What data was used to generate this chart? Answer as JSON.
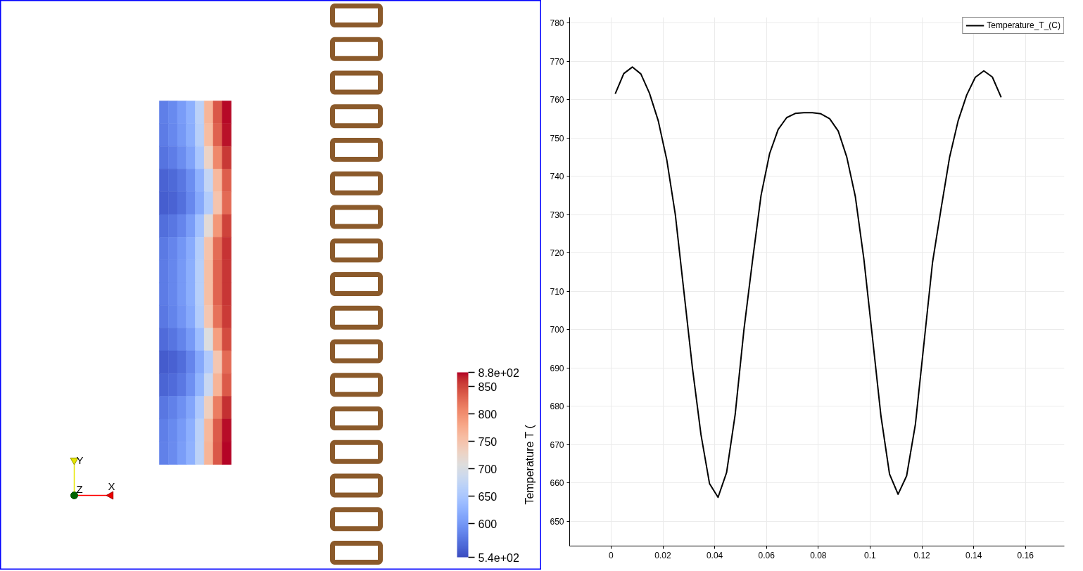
{
  "chart_data": [
    {
      "type": "heatmap",
      "categories": [
        null,
        null,
        null,
        null,
        null,
        null,
        null,
        null
      ],
      "y_categories": [
        null,
        null,
        null,
        null,
        null,
        null,
        null,
        null,
        null,
        null,
        null,
        null,
        null,
        null,
        null,
        null
      ],
      "cells": [
        [
          579,
          589,
          604,
          624,
          669,
          766,
          838,
          874
        ],
        [
          577,
          587,
          601,
          621,
          665,
          758,
          832,
          871
        ],
        [
          570,
          578,
          591,
          611,
          650,
          728,
          806,
          857
        ],
        [
          557,
          562,
          572,
          592,
          625,
          676,
          762,
          834
        ],
        [
          553,
          557,
          567,
          587,
          617,
          660,
          749,
          827
        ],
        [
          566,
          573,
          585,
          605,
          643,
          713,
          794,
          851
        ],
        [
          575,
          585,
          599,
          619,
          661,
          750,
          825,
          860
        ],
        [
          577,
          586,
          601,
          621,
          664,
          756,
          830,
          858
        ],
        [
          577,
          586,
          601,
          621,
          664,
          756,
          830,
          858
        ],
        [
          574,
          583,
          597,
          617,
          659,
          746,
          821,
          855
        ],
        [
          564,
          571,
          583,
          603,
          639,
          705,
          787,
          847
        ],
        [
          552,
          556,
          565,
          585,
          616,
          657,
          746,
          826
        ],
        [
          558,
          564,
          574,
          594,
          628,
          682,
          767,
          837
        ],
        [
          572,
          580,
          593,
          613,
          654,
          735,
          813,
          861
        ],
        [
          579,
          589,
          603,
          623,
          668,
          763,
          836,
          873
        ],
        [
          580,
          590,
          605,
          625,
          670,
          767,
          839,
          875
        ]
      ],
      "clim": [
        539,
        876
      ],
      "cticks": [
        {
          "value": 876,
          "label": "8.8e+02"
        },
        850,
        800,
        750,
        700,
        650,
        600,
        {
          "value": 539,
          "label": "5.4e+02"
        }
      ],
      "clabel": "Temperature T (",
      "annotations": [
        "Y",
        "Z",
        "X"
      ],
      "tick_labels": false
    },
    {
      "type": "line",
      "x": [
        0.0016,
        0.0049,
        0.0082,
        0.0115,
        0.0148,
        0.0182,
        0.0215,
        0.0248,
        0.0281,
        0.0314,
        0.0347,
        0.038,
        0.0413,
        0.0446,
        0.0479,
        0.0513,
        0.0546,
        0.0579,
        0.0612,
        0.0645,
        0.0678,
        0.0711,
        0.0744,
        0.0777,
        0.081,
        0.0844,
        0.0877,
        0.091,
        0.0943,
        0.0976,
        0.1009,
        0.1042,
        0.1075,
        0.1108,
        0.1141,
        0.1175,
        0.1208,
        0.1241,
        0.1274,
        0.1307,
        0.134,
        0.1373,
        0.1406,
        0.1439,
        0.1472,
        0.1506
      ],
      "series": [
        {
          "name": "Temperature_T_(C)",
          "color": "#000000",
          "values": [
            761.5,
            766.8,
            768.5,
            766.7,
            761.7,
            754.5,
            744.3,
            730.0,
            710.0,
            690.0,
            672.6,
            659.8,
            656.2,
            662.7,
            677.8,
            700.0,
            718.0,
            735.0,
            745.9,
            752.2,
            755.3,
            756.4,
            756.6,
            756.6,
            756.3,
            755.0,
            751.8,
            745.0,
            734.7,
            718.4,
            698.0,
            677.4,
            662.3,
            657.0,
            661.8,
            675.3,
            696.4,
            717.5,
            731.5,
            745.0,
            754.5,
            761.2,
            765.8,
            767.5,
            765.9,
            760.6
          ]
        }
      ],
      "xlim": [
        -0.016,
        0.175
      ],
      "ylim": [
        643.5,
        781.5
      ],
      "xticks": [
        0,
        0.02,
        0.04,
        0.06,
        0.08,
        0.1,
        0.12,
        0.14,
        0.16
      ],
      "yticks": [
        650,
        660,
        670,
        680,
        690,
        700,
        710,
        720,
        730,
        740,
        750,
        760,
        770,
        780
      ],
      "grid": true,
      "legend": "top right"
    }
  ]
}
